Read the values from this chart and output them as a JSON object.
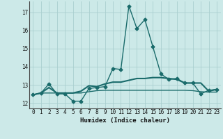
{
  "xlabel": "Humidex (Indice chaleur)",
  "ylabel": "",
  "xlim": [
    -0.5,
    23.5
  ],
  "ylim": [
    11.7,
    17.6
  ],
  "xticks": [
    0,
    1,
    2,
    3,
    4,
    5,
    6,
    7,
    8,
    9,
    10,
    11,
    12,
    13,
    14,
    15,
    16,
    17,
    18,
    19,
    20,
    21,
    22,
    23
  ],
  "yticks": [
    12,
    13,
    14,
    15,
    16,
    17
  ],
  "bg_color": "#cce9e8",
  "grid_color": "#aacfcf",
  "line_color": "#1a6b6b",
  "series": [
    {
      "x": [
        0,
        1,
        2,
        3,
        4,
        5,
        6,
        7,
        8,
        9,
        10,
        11,
        12,
        13,
        14,
        15,
        16,
        17,
        18,
        19,
        20,
        21,
        22,
        23
      ],
      "y": [
        12.45,
        12.55,
        13.05,
        12.5,
        12.5,
        12.1,
        12.1,
        12.8,
        12.85,
        12.9,
        13.9,
        13.85,
        17.35,
        16.1,
        16.6,
        15.1,
        13.6,
        13.3,
        13.35,
        13.1,
        13.1,
        12.5,
        12.7,
        12.75
      ],
      "marker": "D",
      "markersize": 2.5,
      "linewidth": 1.0
    },
    {
      "x": [
        0,
        1,
        2,
        3,
        4,
        5,
        6,
        7,
        8,
        9,
        10,
        11,
        12,
        13,
        14,
        15,
        16,
        17,
        18,
        19,
        20,
        21,
        22,
        23
      ],
      "y": [
        12.45,
        12.55,
        12.85,
        12.55,
        12.55,
        12.55,
        12.65,
        12.95,
        12.9,
        13.05,
        13.15,
        13.15,
        13.25,
        13.35,
        13.35,
        13.4,
        13.4,
        13.35,
        13.3,
        13.1,
        13.1,
        13.1,
        12.65,
        12.75
      ],
      "marker": null,
      "linewidth": 1.5
    },
    {
      "x": [
        0,
        1,
        2,
        3,
        4,
        5,
        6,
        7,
        8,
        9,
        10,
        11,
        12,
        13,
        14,
        15,
        16,
        17,
        18,
        19,
        20,
        21,
        22,
        23
      ],
      "y": [
        12.45,
        12.55,
        12.55,
        12.55,
        12.55,
        12.55,
        12.55,
        12.62,
        12.68,
        12.7,
        12.7,
        12.7,
        12.7,
        12.7,
        12.7,
        12.7,
        12.7,
        12.7,
        12.7,
        12.7,
        12.68,
        12.62,
        12.6,
        12.6
      ],
      "marker": null,
      "linewidth": 1.0
    }
  ]
}
